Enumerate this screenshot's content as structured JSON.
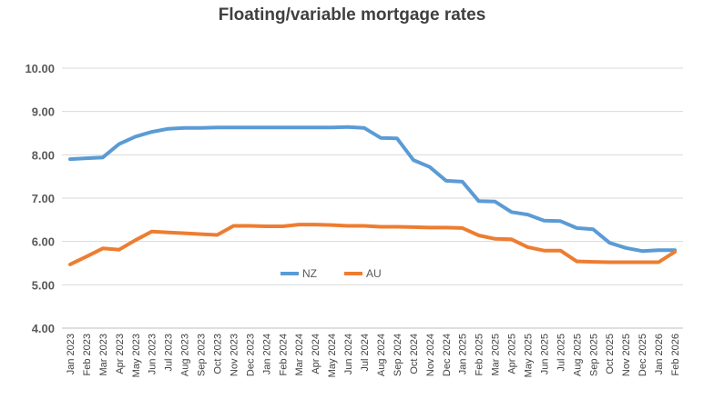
{
  "chart_data": {
    "type": "line",
    "title": "Floating/variable mortgage rates",
    "xlabel": "",
    "ylabel": "",
    "ylim": [
      4.0,
      10.0
    ],
    "yticks": [
      "4.00",
      "5.00",
      "6.00",
      "7.00",
      "8.00",
      "9.00",
      "10.00"
    ],
    "grid": true,
    "legend_position": "inside-bottom-center",
    "categories": [
      "Jan 2023",
      "Feb 2023",
      "Mar 2023",
      "Apr 2023",
      "May 2023",
      "Jun 2023",
      "Jul 2023",
      "Aug 2023",
      "Sep 2023",
      "Oct 2023",
      "Nov 2023",
      "Dec 2023",
      "Jan 2024",
      "Feb 2024",
      "Mar 2024",
      "Apr 2024",
      "May 2024",
      "Jun 2024",
      "Jul 2024",
      "Aug 2024",
      "Sep 2024",
      "Oct 2024",
      "Nov 2024",
      "Dec 2024",
      "Jan 2025",
      "Feb 2025",
      "Mar 2025",
      "Apr 2025",
      "May 2025",
      "Jun 2025",
      "Jul 2025",
      "Aug 2025",
      "Sep 2025",
      "Oct 2025",
      "Nov 2025",
      "Dec 2025",
      "Jan 2026",
      "Feb 2026"
    ],
    "series": [
      {
        "name": "NZ",
        "color": "#5b9bd5",
        "values": [
          7.9,
          7.92,
          7.94,
          8.25,
          8.42,
          8.53,
          8.6,
          8.62,
          8.62,
          8.63,
          8.63,
          8.63,
          8.63,
          8.63,
          8.63,
          8.63,
          8.63,
          8.64,
          8.62,
          8.39,
          8.38,
          7.88,
          7.72,
          7.4,
          7.38,
          6.93,
          6.92,
          6.68,
          6.62,
          6.48,
          6.47,
          6.31,
          6.28,
          5.97,
          5.85,
          5.78,
          5.8,
          5.8
        ]
      },
      {
        "name": "AU",
        "color": "#ed7d31",
        "values": [
          5.47,
          5.65,
          5.84,
          5.81,
          6.03,
          6.23,
          6.21,
          6.19,
          6.17,
          6.15,
          6.36,
          6.36,
          6.35,
          6.35,
          6.39,
          6.39,
          6.38,
          6.36,
          6.36,
          6.34,
          6.34,
          6.33,
          6.32,
          6.32,
          6.31,
          6.14,
          6.06,
          6.05,
          5.87,
          5.79,
          5.79,
          5.54,
          5.53,
          5.52,
          5.52,
          5.52,
          5.52,
          5.76
        ]
      }
    ]
  }
}
